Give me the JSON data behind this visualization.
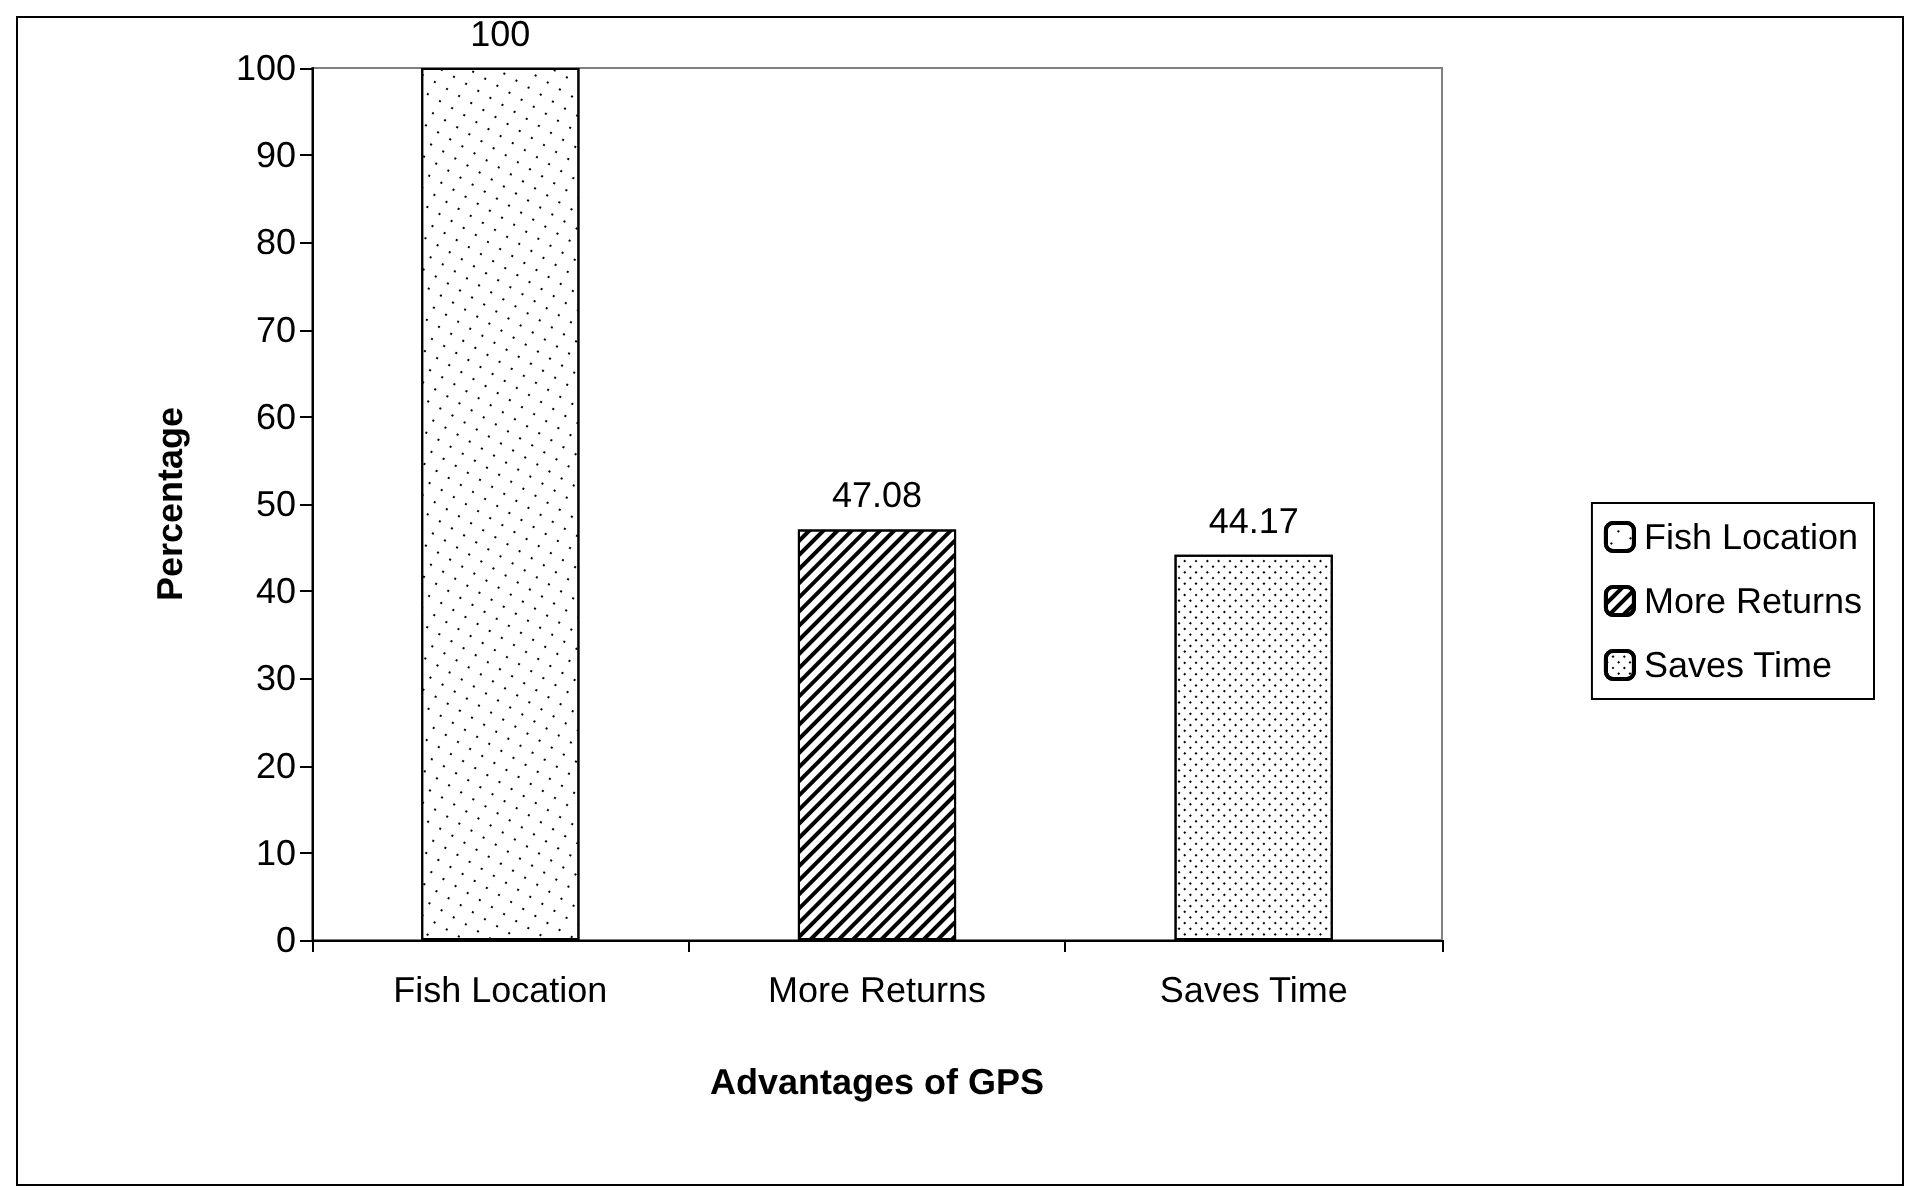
{
  "chart_data": {
    "type": "bar",
    "xlabel": "Advantages of GPS",
    "ylabel": "Percentage",
    "categories": [
      "Fish Location",
      "More Returns",
      "Saves Time"
    ],
    "series": [
      {
        "name": "Fish Location",
        "color": "#ffffff",
        "values": [
          100,
          null,
          null
        ]
      },
      {
        "name": "More Returns",
        "color": "#ffffff",
        "values": [
          null,
          47.08,
          null
        ]
      },
      {
        "name": "Saves Time",
        "color": "#ffffff",
        "values": [
          null,
          null,
          44.17
        ]
      }
    ],
    "ylim": [
      0,
      100
    ],
    "yticks": [
      0,
      10,
      20,
      30,
      40,
      50,
      60,
      70,
      80,
      90,
      100
    ],
    "data_labels": true,
    "grid": false,
    "legend": "right"
  }
}
